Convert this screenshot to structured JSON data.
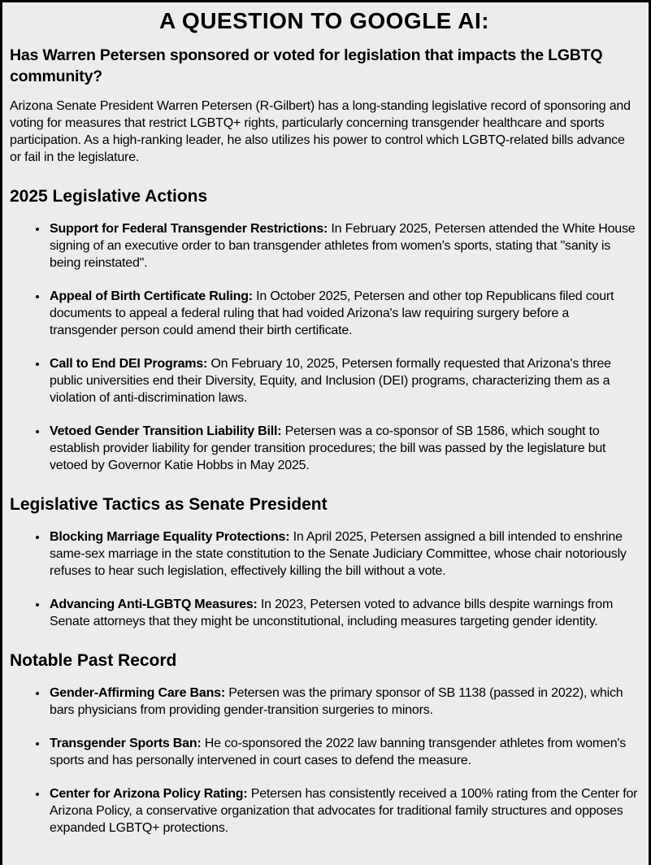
{
  "page": {
    "title": "A QUESTION TO GOOGLE AI:",
    "question": "Has Warren Petersen sponsored or voted for legislation that impacts the LGBTQ community?",
    "intro": "Arizona Senate President Warren Petersen (R-Gilbert) has a long-standing legislative record of sponsoring and voting for measures that restrict LGBTQ+ rights, particularly concerning transgender healthcare and sports participation. As a high-ranking leader, he also utilizes his power to control which LGBTQ-related bills advance or fail in the legislature.",
    "colors": {
      "page_background": "#ececec",
      "border": "#000000",
      "text": "#000000"
    },
    "sections": [
      {
        "heading": "2025 Legislative Actions",
        "items": [
          {
            "label": "Support for Federal Transgender Restrictions:",
            "text": " In February 2025, Petersen attended the White House signing of an executive order to ban transgender athletes from women's sports, stating that \"sanity is being reinstated\"."
          },
          {
            "label": "Appeal of Birth Certificate Ruling:",
            "text": " In October 2025, Petersen and other top Republicans filed court documents to appeal a federal ruling that had voided Arizona's law requiring surgery before a transgender person could amend their birth certificate."
          },
          {
            "label": "Call to End DEI Programs:",
            "text": " On February 10, 2025, Petersen formally requested that Arizona's three public universities end their Diversity, Equity, and Inclusion (DEI) programs, characterizing them as a violation of anti-discrimination laws."
          },
          {
            "label": "Vetoed Gender Transition Liability Bill:",
            "text": " Petersen was a co-sponsor of SB 1586, which sought to establish provider liability for gender transition procedures; the bill was passed by the legislature but vetoed by Governor Katie Hobbs in May 2025."
          }
        ]
      },
      {
        "heading": "Legislative Tactics as Senate President",
        "items": [
          {
            "label": "Blocking Marriage Equality Protections:",
            "text": " In April 2025, Petersen assigned a bill intended to enshrine same-sex marriage in the state constitution to the Senate Judiciary Committee, whose chair notoriously refuses to hear such legislation, effectively killing the bill without a vote."
          },
          {
            "label": "Advancing Anti-LGBTQ Measures:",
            "text": " In 2023, Petersen voted to advance bills despite warnings from Senate attorneys that they might be unconstitutional, including measures targeting gender identity."
          }
        ]
      },
      {
        "heading": "Notable Past Record",
        "items": [
          {
            "label": "Gender-Affirming Care Bans:",
            "text": " Petersen was the primary sponsor of SB 1138 (passed in 2022), which bars physicians from providing gender-transition surgeries to minors."
          },
          {
            "label": "Transgender Sports Ban:",
            "text": " He co-sponsored the 2022 law banning transgender athletes from women's sports and has personally intervened in court cases to defend the measure."
          },
          {
            "label": "Center for Arizona Policy Rating:",
            "text": " Petersen has consistently received a 100% rating from the Center for Arizona Policy, a conservative organization that advocates for traditional family structures and opposes expanded LGBTQ+ protections."
          }
        ]
      }
    ]
  }
}
